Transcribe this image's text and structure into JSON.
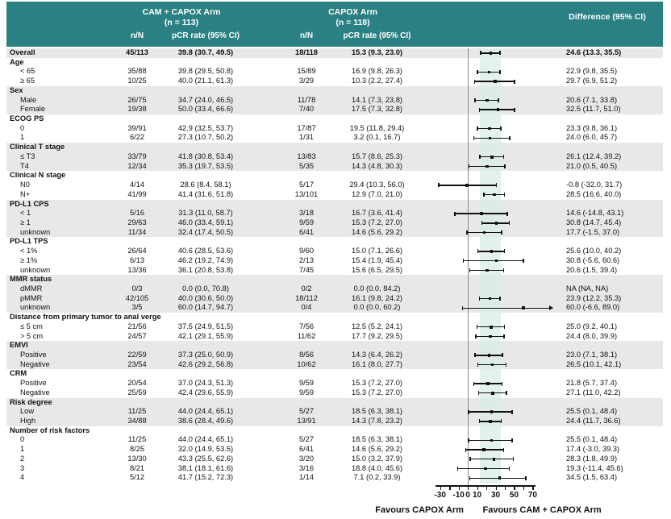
{
  "colors": {
    "teal": "#2B8084",
    "stripe": "#E8E8E8",
    "band": "#D9EDE3",
    "ci_line": "#111111",
    "zero_line": "#8A8A8A"
  },
  "header": {
    "arm1_title": "CAM + CAPOX Arm",
    "arm1_n": "(n = 113)",
    "arm2_title": "CAPOX Arm",
    "arm2_n": "(n = 118)",
    "col_nn_1": "n/N",
    "col_pcr_1": "pCR rate (95% CI)",
    "col_nn_2": "n/N",
    "col_pcr_2": "pCR rate (95% CI)",
    "diff_title": "Difference (95% CI)"
  },
  "footer": {
    "favours_left": "Favours CAPOX Arm",
    "favours_right": "Favours CAM + CAPOX Arm"
  },
  "chart_data": {
    "type": "scatter",
    "subtype": "forest-plot",
    "xlim_axis": [
      -30,
      70
    ],
    "zero_line": 0,
    "shaded_band_ci": [
      13.3,
      35.5
    ],
    "axis": {
      "ticks": [
        -30,
        -20,
        -10,
        0,
        10,
        20,
        30,
        40,
        50,
        60,
        70
      ],
      "labeled": [
        -30,
        -10,
        0,
        10,
        30,
        50,
        70
      ]
    },
    "rows": [
      {
        "type": "data",
        "label": "Overall",
        "bold": true,
        "indent": false,
        "shade": true,
        "n1": "45/113",
        "p1": "39.8 (30.7, 49.5)",
        "n2": "18/118",
        "p2": "15.3 (9.3, 23.0)",
        "diff": "24.6 (13.3, 35.5)",
        "est": 24.6,
        "lo": 13.3,
        "hi": 35.5
      },
      {
        "type": "header",
        "label": "Age",
        "shade": false
      },
      {
        "type": "data",
        "label": "< 65",
        "indent": true,
        "shade": false,
        "n1": "35/88",
        "p1": "39.8 (29.5, 50.8)",
        "n2": "15/89",
        "p2": "16.9 (9.8, 26.3)",
        "diff": "22.9 (9.8, 35.5)",
        "est": 22.9,
        "lo": 9.8,
        "hi": 35.5
      },
      {
        "type": "data",
        "label": "≥ 65",
        "indent": true,
        "shade": false,
        "n1": "10/25",
        "p1": "40.0 (21.1, 61.3)",
        "n2": "3/29",
        "p2": "10.3 (2.2, 27.4)",
        "diff": "29.7 (6.9, 51.2)",
        "est": 29.7,
        "lo": 6.9,
        "hi": 51.2
      },
      {
        "type": "header",
        "label": "Sex",
        "shade": true
      },
      {
        "type": "data",
        "label": "Male",
        "indent": true,
        "shade": true,
        "n1": "26/75",
        "p1": "34.7 (24.0, 46.5)",
        "n2": "11/78",
        "p2": "14.1 (7.3, 23.8)",
        "diff": "20.6 (7.1, 33.8)",
        "est": 20.6,
        "lo": 7.1,
        "hi": 33.8
      },
      {
        "type": "data",
        "label": "Female",
        "indent": true,
        "shade": true,
        "n1": "19/38",
        "p1": "50.0 (33.4, 66.6)",
        "n2": "7/40",
        "p2": "17.5 (7.3, 32.8)",
        "diff": "32.5 (11.7, 51.0)",
        "est": 32.5,
        "lo": 11.7,
        "hi": 51.0
      },
      {
        "type": "header",
        "label": "ECOG PS",
        "shade": false
      },
      {
        "type": "data",
        "label": "0",
        "indent": true,
        "shade": false,
        "n1": "39/91",
        "p1": "42.9 (32.5, 53.7)",
        "n2": "17/87",
        "p2": "19.5 (11.8, 29.4)",
        "diff": "23.3 (9.8, 36.1)",
        "est": 23.3,
        "lo": 9.8,
        "hi": 36.1
      },
      {
        "type": "data",
        "label": "1",
        "indent": true,
        "shade": false,
        "n1": "6/22",
        "p1": "27.3 (10.7, 50.2)",
        "n2": "1/31",
        "p2": "3.2 (0.1, 16.7)",
        "diff": "24.0 (6.0, 45.7)",
        "est": 24.0,
        "lo": 6.0,
        "hi": 45.7
      },
      {
        "type": "header",
        "label": "Clinical T stage",
        "shade": true
      },
      {
        "type": "data",
        "label": "≤ T3",
        "indent": true,
        "shade": true,
        "n1": "33/79",
        "p1": "41.8 (30.8, 53.4)",
        "n2": "13/83",
        "p2": "15.7 (8.6, 25.3)",
        "diff": "26.1 (12.4, 39.2)",
        "est": 26.1,
        "lo": 12.4,
        "hi": 39.2
      },
      {
        "type": "data",
        "label": "T4",
        "indent": true,
        "shade": true,
        "n1": "12/34",
        "p1": "35.3 (19.7, 53.5)",
        "n2": "5/35",
        "p2": "14.3 (4.8, 30.3)",
        "diff": "21.0 (0.5, 40.5)",
        "est": 21.0,
        "lo": 0.5,
        "hi": 40.5
      },
      {
        "type": "header",
        "label": "Clinical N stage",
        "shade": false
      },
      {
        "type": "data",
        "label": "N0",
        "indent": true,
        "shade": false,
        "n1": "4/14",
        "p1": "28.6 (8.4, 58.1)",
        "n2": "5/17",
        "p2": "29.4 (10.3, 56.0)",
        "diff": "-0.8 (-32.0, 31.7)",
        "est": -0.8,
        "lo": -32.0,
        "hi": 31.7
      },
      {
        "type": "data",
        "label": "N+",
        "indent": true,
        "shade": false,
        "n1": "41/99",
        "p1": "41.4 (31.6, 51.8)",
        "n2": "13/101",
        "p2": "12.9 (7.0, 21.0)",
        "diff": "28.5 (16.6, 40.0)",
        "est": 28.5,
        "lo": 16.6,
        "hi": 40.0
      },
      {
        "type": "header",
        "label": "PD-L1 CPS",
        "shade": true
      },
      {
        "type": "data",
        "label": "< 1",
        "indent": true,
        "shade": true,
        "n1": "5/16",
        "p1": "31.3 (11.0, 58.7)",
        "n2": "3/18",
        "p2": "16.7 (3.6, 41.4)",
        "diff": "14.6 (-14.8, 43.1)",
        "est": 14.6,
        "lo": -14.8,
        "hi": 43.1
      },
      {
        "type": "data",
        "label": "≥ 1",
        "indent": true,
        "shade": true,
        "n1": "29/63",
        "p1": "46.0 (33.4, 59.1)",
        "n2": "9/59",
        "p2": "15.3 (7.2, 27.0)",
        "diff": "30.8 (14.7, 45.4)",
        "est": 30.8,
        "lo": 14.7,
        "hi": 45.4
      },
      {
        "type": "data",
        "label": "unknown",
        "indent": true,
        "shade": true,
        "n1": "11/34",
        "p1": "32.4 (17.4, 50.5)",
        "n2": "6/41",
        "p2": "14.6 (5.6, 29.2)",
        "diff": "17.7 (-1.5, 37.0)",
        "est": 17.7,
        "lo": -1.5,
        "hi": 37.0
      },
      {
        "type": "header",
        "label": "PD-L1 TPS",
        "shade": false
      },
      {
        "type": "data",
        "label": "< 1%",
        "indent": true,
        "shade": false,
        "n1": "26/64",
        "p1": "40.6 (28.5, 53.6)",
        "n2": "9/60",
        "p2": "15.0 (7.1, 26.6)",
        "diff": "25.6 (10.0, 40.2)",
        "est": 25.6,
        "lo": 10.0,
        "hi": 40.2
      },
      {
        "type": "data",
        "label": "≥ 1%",
        "indent": true,
        "shade": false,
        "n1": "6/13",
        "p1": "46.2 (19.2, 74.9)",
        "n2": "2/13",
        "p2": "15.4 (1.9, 45.4)",
        "diff": "30.8 (-5.6, 60.6)",
        "est": 30.8,
        "lo": -5.6,
        "hi": 60.6
      },
      {
        "type": "data",
        "label": "unknown",
        "indent": true,
        "shade": false,
        "n1": "13/36",
        "p1": "36.1 (20.8, 53.8)",
        "n2": "7/45",
        "p2": "15.6 (6.5, 29.5)",
        "diff": "20.6 (1.5, 39.4)",
        "est": 20.6,
        "lo": 1.5,
        "hi": 39.4
      },
      {
        "type": "header",
        "label": "MMR status",
        "shade": true
      },
      {
        "type": "data",
        "label": "dMMR",
        "indent": true,
        "shade": true,
        "n1": "0/3",
        "p1": "0.0 (0.0, 70.8)",
        "n2": "0/2",
        "p2": "0.0 (0.0, 84.2)",
        "diff": "NA (NA, NA)",
        "est": null,
        "lo": null,
        "hi": null
      },
      {
        "type": "data",
        "label": "pMMR",
        "indent": true,
        "shade": true,
        "n1": "42/105",
        "p1": "40.0 (30.6, 50.0)",
        "n2": "18/112",
        "p2": "16.1 (9.8, 24.2)",
        "diff": "23.9 (12.2, 35.3)",
        "est": 23.9,
        "lo": 12.2,
        "hi": 35.3
      },
      {
        "type": "data",
        "label": "unknown",
        "indent": true,
        "shade": true,
        "n1": "3/5",
        "p1": "60.0 (14.7, 94.7)",
        "n2": "0/4",
        "p2": "0.0 (0.0, 60.2)",
        "diff": "60.0 (-6.6, 89.0)",
        "est": 60.0,
        "lo": -6.6,
        "hi": 89.0,
        "arrow": true
      },
      {
        "type": "header",
        "label": "Distance from primary tumor to anal verge",
        "shade": false
      },
      {
        "type": "data",
        "label": "≤ 5 cm",
        "indent": true,
        "shade": false,
        "n1": "21/56",
        "p1": "37.5 (24.9, 51.5)",
        "n2": "7/56",
        "p2": "12.5 (5.2, 24.1)",
        "diff": "25.0 (9.2, 40.1)",
        "est": 25.0,
        "lo": 9.2,
        "hi": 40.1
      },
      {
        "type": "data",
        "label": "> 5 cm",
        "indent": true,
        "shade": false,
        "n1": "24/57",
        "p1": "42.1 (29.1, 55.9)",
        "n2": "11/62",
        "p2": "17.7 (9.2, 29.5)",
        "diff": "24.4 (8.0, 39.9)",
        "est": 24.4,
        "lo": 8.0,
        "hi": 39.9
      },
      {
        "type": "header",
        "label": "EMVI",
        "shade": true
      },
      {
        "type": "data",
        "label": "Positive",
        "indent": true,
        "shade": true,
        "n1": "22/59",
        "p1": "37.3 (25.0, 50.9)",
        "n2": "8/56",
        "p2": "14.3 (6.4, 26.2)",
        "diff": "23.0 (7.1, 38.1)",
        "est": 23.0,
        "lo": 7.1,
        "hi": 38.1
      },
      {
        "type": "data",
        "label": "Negative",
        "indent": true,
        "shade": true,
        "n1": "23/54",
        "p1": "42.6 (29.2, 56.8)",
        "n2": "10/62",
        "p2": "16.1 (8.0, 27.7)",
        "diff": "26.5 (10.1, 42.1)",
        "est": 26.5,
        "lo": 10.1,
        "hi": 42.1
      },
      {
        "type": "header",
        "label": "CRM",
        "shade": false
      },
      {
        "type": "data",
        "label": "Positive",
        "indent": true,
        "shade": false,
        "n1": "20/54",
        "p1": "37.0 (24.3, 51.3)",
        "n2": "9/59",
        "p2": "15.3 (7.2, 27.0)",
        "diff": "21.8 (5.7, 37.4)",
        "est": 21.8,
        "lo": 5.7,
        "hi": 37.4
      },
      {
        "type": "data",
        "label": "Negative",
        "indent": true,
        "shade": false,
        "n1": "25/59",
        "p1": "42.4 (29.6, 55.9)",
        "n2": "9/59",
        "p2": "15.3 (7.2, 27.0)",
        "diff": "27.1 (11.0, 42.2)",
        "est": 27.1,
        "lo": 11.0,
        "hi": 42.2
      },
      {
        "type": "header",
        "label": "Risk degree",
        "shade": true
      },
      {
        "type": "data",
        "label": "Low",
        "indent": true,
        "shade": true,
        "n1": "11/25",
        "p1": "44.0 (24.4, 65.1)",
        "n2": "5/27",
        "p2": "18.5 (6.3, 38.1)",
        "diff": "25.5 (0.1, 48.4)",
        "est": 25.5,
        "lo": 0.1,
        "hi": 48.4
      },
      {
        "type": "data",
        "label": "High",
        "indent": true,
        "shade": true,
        "n1": "34/88",
        "p1": "38.6 (28.4, 49.6)",
        "n2": "13/91",
        "p2": "14.3 (7.8, 23.2)",
        "diff": "24.4 (11.7, 36.6)",
        "est": 24.4,
        "lo": 11.7,
        "hi": 36.6
      },
      {
        "type": "header",
        "label": "Number of risk factors",
        "shade": false
      },
      {
        "type": "data",
        "label": "0",
        "indent": true,
        "shade": false,
        "n1": "11/25",
        "p1": "44.0 (24.4, 65.1)",
        "n2": "5/27",
        "p2": "18.5 (6.3, 38.1)",
        "diff": "25.5 (0.1, 48.4)",
        "est": 25.5,
        "lo": 0.1,
        "hi": 48.4
      },
      {
        "type": "data",
        "label": "1",
        "indent": true,
        "shade": false,
        "n1": "8/25",
        "p1": "32.0 (14.9, 53.5)",
        "n2": "6/41",
        "p2": "14.6 (5.6, 29.2)",
        "diff": "17.4 (-3.0, 39.3)",
        "est": 17.4,
        "lo": -3.0,
        "hi": 39.3
      },
      {
        "type": "data",
        "label": "2",
        "indent": true,
        "shade": false,
        "n1": "13/30",
        "p1": "43.3 (25.5, 62.6)",
        "n2": "3/20",
        "p2": "15.0 (3.2, 37.9)",
        "diff": "28.3 (1.8, 49.9)",
        "est": 28.3,
        "lo": 1.8,
        "hi": 49.9
      },
      {
        "type": "data",
        "label": "3",
        "indent": true,
        "shade": false,
        "n1": "8/21",
        "p1": "38.1 (18.1, 61.6)",
        "n2": "3/16",
        "p2": "18.8 (4.0, 45.6)",
        "diff": "19.3 (-11.4, 45.6)",
        "est": 19.3,
        "lo": -11.4,
        "hi": 45.6
      },
      {
        "type": "data",
        "label": "4",
        "indent": true,
        "shade": false,
        "n1": "5/12",
        "p1": "41.7 (15.2, 72.3)",
        "n2": "1/14",
        "p2": "7.1 (0.2, 33.9)",
        "diff": "34.5 (1.5, 63.4)",
        "est": 34.5,
        "lo": 1.5,
        "hi": 63.4
      }
    ]
  }
}
